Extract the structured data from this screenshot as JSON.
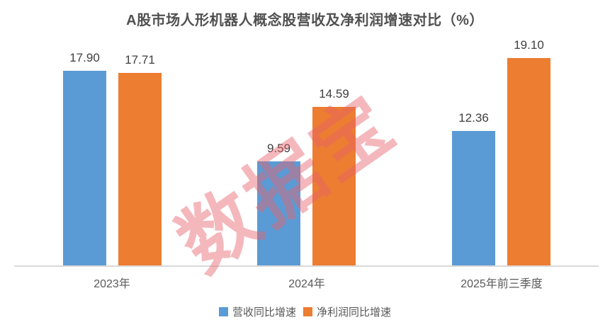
{
  "title": "A股市场人形机器人概念股营收及净利润增速对比（%）",
  "watermark": "数据宝",
  "colors": {
    "revenue_series": "#5B9BD5",
    "profit_series": "#ED7D31",
    "axis_line": "#D9D9D9",
    "title_text": "#515151",
    "value_label_text": "#3F3F3F",
    "tick_text": "#595959",
    "watermark": "rgba(231,98,107,0.45)"
  },
  "legend": {
    "items": [
      {
        "label": "营收同比增速",
        "color": "#5B9BD5"
      },
      {
        "label": "净利润同比增速",
        "color": "#ED7D31"
      }
    ]
  },
  "chart_data": {
    "type": "bar",
    "title": "A股市场人形机器人概念股营收及净利润增速对比（%）",
    "categories": [
      "2023年",
      "2024年",
      "2025年前三季度"
    ],
    "series": [
      {
        "name": "营收同比增速",
        "color": "#5B9BD5",
        "values": [
          17.9,
          9.59,
          12.36
        ]
      },
      {
        "name": "净利润同比增速",
        "color": "#ED7D31",
        "values": [
          17.71,
          14.59,
          19.1
        ]
      }
    ],
    "value_labels": [
      [
        "17.90",
        "17.71"
      ],
      [
        "9.59",
        "14.59"
      ],
      [
        "12.36",
        "19.10"
      ]
    ],
    "xlabel": "",
    "ylabel": "",
    "ylim": [
      0,
      20
    ],
    "grid": false,
    "y_axis_visible": false,
    "legend_position": "bottom"
  }
}
